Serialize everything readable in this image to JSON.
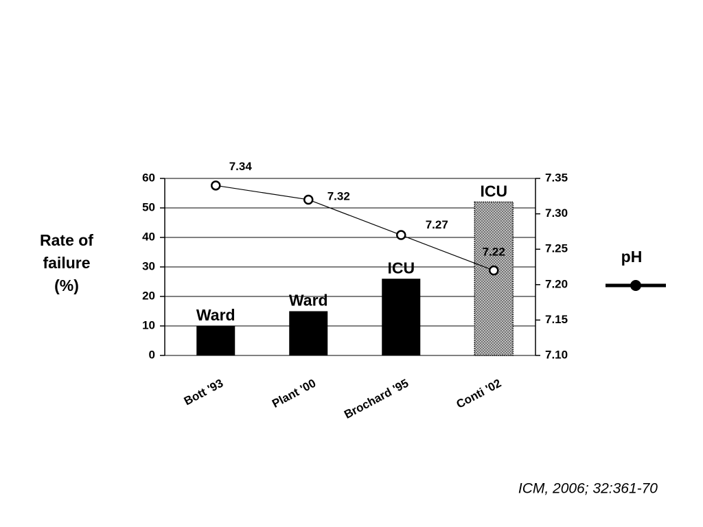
{
  "chart_data": {
    "type": "bar",
    "categories": [
      "Bott '93",
      "Plant '00",
      "Brochard '95",
      "Conti '02"
    ],
    "series": [
      {
        "name": "Rate of failure (%)",
        "colors": [
          "#000000",
          "#000000",
          "#000000",
          "#b4b4b4"
        ],
        "values": [
          10,
          15,
          26,
          52
        ],
        "bar_labels": [
          "Ward",
          "Ward",
          "ICU",
          "ICU"
        ]
      },
      {
        "name": "pH",
        "color": "#000000",
        "axis": "y2",
        "values": [
          7.34,
          7.32,
          7.27,
          7.22
        ]
      }
    ],
    "ylabel_lines": [
      "Rate of",
      "failure",
      "(%)"
    ],
    "ylim": [
      0,
      60
    ],
    "yticks": [
      0,
      10,
      20,
      30,
      40,
      50,
      60
    ],
    "y2lim": [
      7.1,
      7.35
    ],
    "y2ticks": [
      {
        "value": 7.1,
        "label": "7.10"
      },
      7.15,
      {
        "value": 7.2,
        "label": "7.20"
      },
      7.25,
      {
        "value": 7.3,
        "label": "7.30"
      },
      7.35
    ],
    "grid": true,
    "legend": "right",
    "citation": "ICM, 2006; 32:361-70"
  }
}
